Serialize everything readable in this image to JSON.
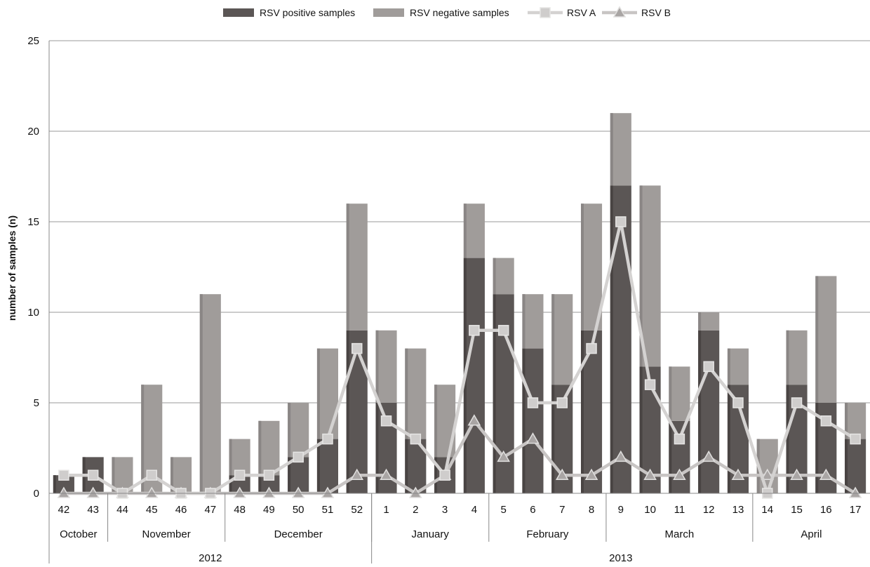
{
  "chart_data": {
    "type": "bar",
    "subtype": "stacked bar with line overlays",
    "title": "",
    "xlabel": "",
    "ylabel": "number of samples (n)",
    "ylim": [
      0,
      25
    ],
    "yticks": [
      "0",
      "5",
      "10",
      "15",
      "20",
      "25"
    ],
    "grid": true,
    "legend_position": "top-center",
    "categories": [
      "42",
      "43",
      "44",
      "45",
      "46",
      "47",
      "48",
      "49",
      "50",
      "51",
      "52",
      "1",
      "2",
      "3",
      "4",
      "5",
      "6",
      "7",
      "8",
      "9",
      "10",
      "11",
      "12",
      "13",
      "14",
      "15",
      "16",
      "17"
    ],
    "series": [
      {
        "name": "RSV positive samples",
        "kind": "bar",
        "color": "#5b5655",
        "values": [
          1,
          2,
          0,
          0,
          0,
          0,
          1,
          1,
          2,
          3,
          9,
          5,
          3,
          2,
          13,
          11,
          8,
          6,
          9,
          17,
          7,
          4,
          9,
          6,
          0,
          6,
          5,
          3
        ]
      },
      {
        "name": "RSV negative samples",
        "kind": "bar",
        "color": "#a09c9a",
        "values": [
          0,
          0,
          2,
          6,
          2,
          11,
          2,
          3,
          3,
          5,
          7,
          4,
          5,
          4,
          3,
          2,
          3,
          5,
          7,
          4,
          10,
          3,
          1,
          2,
          3,
          3,
          7,
          2
        ]
      },
      {
        "name": "RSV A",
        "kind": "line",
        "marker": "square",
        "color": "#d4d2d1",
        "values": [
          1,
          1,
          0,
          1,
          0,
          0,
          1,
          1,
          2,
          3,
          8,
          4,
          3,
          1,
          9,
          9,
          5,
          5,
          8,
          15,
          6,
          3,
          7,
          5,
          0,
          5,
          4,
          3
        ]
      },
      {
        "name": "RSV B",
        "kind": "line",
        "marker": "triangle",
        "color": "#c8c5c4",
        "values": [
          0,
          0,
          0,
          0,
          0,
          0,
          0,
          0,
          0,
          0,
          1,
          1,
          0,
          1,
          4,
          2,
          3,
          1,
          1,
          2,
          1,
          1,
          2,
          1,
          1,
          1,
          1,
          0
        ]
      }
    ],
    "months": [
      {
        "label": "October",
        "start": 0,
        "end": 1
      },
      {
        "label": "November",
        "start": 2,
        "end": 5
      },
      {
        "label": "December",
        "start": 6,
        "end": 10
      },
      {
        "label": "January",
        "start": 11,
        "end": 14
      },
      {
        "label": "February",
        "start": 15,
        "end": 18
      },
      {
        "label": "March",
        "start": 19,
        "end": 23
      },
      {
        "label": "April",
        "start": 24,
        "end": 27
      }
    ],
    "years": [
      {
        "label": "2012",
        "start": 0,
        "end": 10
      },
      {
        "label": "2013",
        "start": 11,
        "end": 27
      }
    ]
  }
}
